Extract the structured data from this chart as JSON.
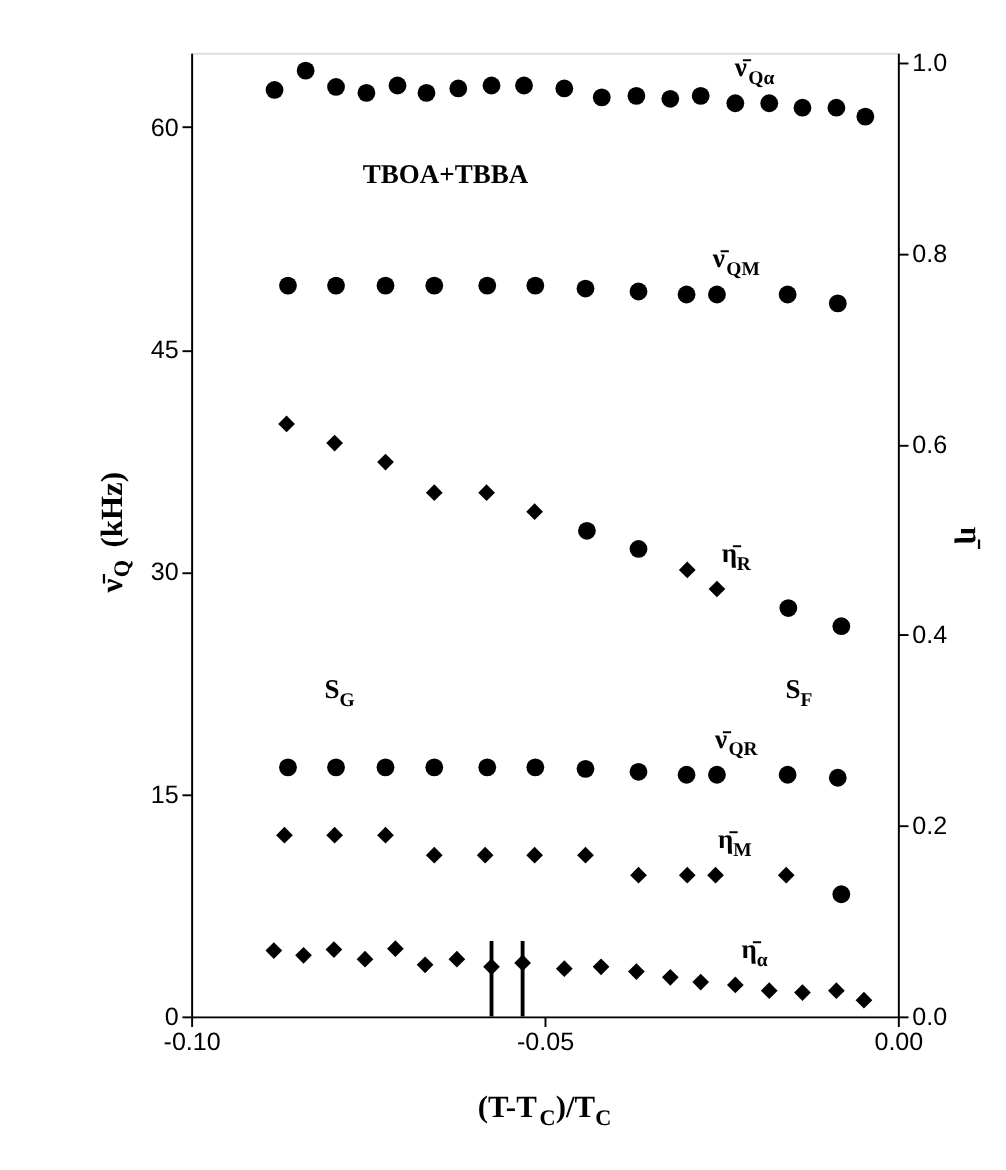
{
  "chart_data": {
    "type": "scatter",
    "xlabel": "(T-T$_{C}$)/T$_{C}$",
    "ylabel": "ν̄$_{Q}$ (kHz)",
    "y2label": "η̄",
    "xlim": [
      -0.1,
      0.0
    ],
    "xticks": [
      {
        "value": -0.1,
        "label": "-0.10"
      },
      {
        "value": -0.05,
        "label": "-0.05"
      },
      {
        "value": 0.0,
        "label": "0.00"
      }
    ],
    "ylim": [
      0,
      65
    ],
    "yticks": [
      0,
      15,
      30,
      45,
      60
    ],
    "y2lim": [
      0,
      1.01
    ],
    "y2ticks": [
      {
        "value": 0,
        "label": "0.0"
      },
      {
        "value": 0.2,
        "label": "0.2"
      },
      {
        "value": 0.4,
        "label": "0.4"
      },
      {
        "value": 0.6,
        "label": "0.6"
      },
      {
        "value": 0.8,
        "label": "0.8"
      },
      {
        "value": 1.0,
        "label": "1.0"
      }
    ],
    "grid": false,
    "series": [
      {
        "name": "ν̄$_{Qα}$",
        "color": "#000000",
        "marker": "circle",
        "x": [
          -0.0882,
          -0.0838,
          -0.0795,
          -0.0752,
          -0.0708,
          -0.0667,
          -0.0622,
          -0.0575,
          -0.0529,
          -0.0472,
          -0.0419,
          -0.037,
          -0.0322,
          -0.0279,
          -0.023,
          -0.0182,
          -0.0135,
          -0.0087,
          -0.0046
        ],
        "values": [
          62.5,
          63.8,
          62.7,
          62.3,
          62.8,
          62.3,
          62.6,
          62.8,
          62.8,
          62.6,
          62.0,
          62.1,
          61.9,
          62.1,
          61.6,
          61.6,
          61.3,
          61.3,
          60.7
        ]
      },
      {
        "name": "ν̄$_{QM}$",
        "color": "#000000",
        "marker": "circle",
        "x": [
          -0.0863,
          -0.0795,
          -0.0725,
          -0.0656,
          -0.0581,
          -0.0513,
          -0.0442,
          -0.0367,
          -0.0299,
          -0.0256,
          -0.0156,
          -0.0085
        ],
        "values": [
          49.3,
          49.3,
          49.3,
          49.3,
          49.3,
          49.3,
          49.1,
          48.9,
          48.7,
          48.7,
          48.7,
          48.1
        ]
      },
      {
        "name": "ν̄$_{QR}$",
        "color": "#000000",
        "marker": "circle",
        "x": [
          -0.0863,
          -0.0795,
          -0.0725,
          -0.0656,
          -0.0581,
          -0.0513,
          -0.0442,
          -0.0367,
          -0.0299,
          -0.0256,
          -0.0156,
          -0.0085
        ],
        "values": [
          16.8,
          16.8,
          16.8,
          16.8,
          16.8,
          16.8,
          16.7,
          16.5,
          16.3,
          16.3,
          16.3,
          16.1
        ]
      },
      {
        "name": "η̄$_{R}$",
        "color": "#000000",
        "marker": "diamond",
        "axis": "y2",
        "x": [
          -0.0865,
          -0.0797,
          -0.0725,
          -0.0656,
          -0.0582,
          -0.0514,
          -0.0298,
          -0.0256
        ],
        "values": [
          0.621,
          0.601,
          0.581,
          0.549,
          0.549,
          0.529,
          0.468,
          0.448
        ]
      },
      {
        "color": "#000000",
        "marker": "circle",
        "axis": "y2",
        "x": [
          -0.044,
          -0.0367,
          -0.0155,
          -0.008
        ],
        "values": [
          0.509,
          0.49,
          0.428,
          0.409
        ]
      },
      {
        "name": "η̄$_{M}$",
        "color": "#000000",
        "marker": "diamond",
        "axis": "y2",
        "x": [
          -0.0868,
          -0.0797,
          -0.0725,
          -0.0656,
          -0.0584,
          -0.0514,
          -0.0442,
          -0.0367,
          -0.0298,
          -0.0258,
          -0.0158
        ],
        "values": [
          0.19,
          0.19,
          0.19,
          0.169,
          0.169,
          0.169,
          0.169,
          0.148,
          0.148,
          0.148,
          0.148
        ]
      },
      {
        "color": "#000000",
        "marker": "circle",
        "axis": "y2",
        "x": [
          -0.008
        ],
        "values": [
          0.128
        ]
      },
      {
        "name": "η̄$_{α}$",
        "color": "#000000",
        "marker": "diamond",
        "axis": "y2",
        "x": [
          -0.0883,
          -0.0841,
          -0.0798,
          -0.0754,
          -0.0711,
          -0.0669,
          -0.0624,
          -0.0575,
          -0.0531,
          -0.0472,
          -0.042,
          -0.037,
          -0.0322,
          -0.0279,
          -0.023,
          -0.0182,
          -0.0135,
          -0.0087,
          -0.0048
        ],
        "values": [
          0.069,
          0.064,
          0.07,
          0.06,
          0.071,
          0.054,
          0.06,
          0.052,
          0.056,
          0.05,
          0.052,
          0.047,
          0.041,
          0.036,
          0.033,
          0.027,
          0.025,
          0.027,
          0.017
        ],
        "errors": [
          null,
          null,
          null,
          null,
          null,
          null,
          null,
          [
            0.0,
            0.079
          ],
          [
            0.0,
            0.079
          ],
          null,
          null,
          null,
          null,
          null,
          null,
          null,
          null,
          null,
          null
        ]
      }
    ],
    "annotations": [
      "TBOA+TBBA",
      "S$_{G}$",
      "S$_{F}$"
    ]
  }
}
